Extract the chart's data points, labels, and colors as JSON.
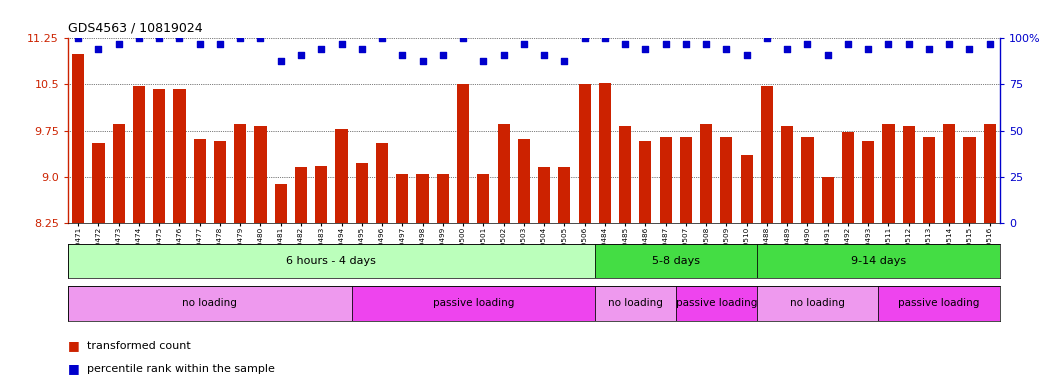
{
  "title": "GDS4563 / 10819024",
  "samples": [
    "GSM930471",
    "GSM930472",
    "GSM930473",
    "GSM930474",
    "GSM930475",
    "GSM930476",
    "GSM930477",
    "GSM930478",
    "GSM930479",
    "GSM930480",
    "GSM930481",
    "GSM930482",
    "GSM930483",
    "GSM930494",
    "GSM930495",
    "GSM930496",
    "GSM930497",
    "GSM930498",
    "GSM930499",
    "GSM930500",
    "GSM930501",
    "GSM930502",
    "GSM930503",
    "GSM930504",
    "GSM930505",
    "GSM930506",
    "GSM930484",
    "GSM930485",
    "GSM930486",
    "GSM930487",
    "GSM930507",
    "GSM930508",
    "GSM930509",
    "GSM930510",
    "GSM930488",
    "GSM930489",
    "GSM930490",
    "GSM930491",
    "GSM930492",
    "GSM930493",
    "GSM930511",
    "GSM930512",
    "GSM930513",
    "GSM930514",
    "GSM930515",
    "GSM930516"
  ],
  "bar_values": [
    11.0,
    9.55,
    9.85,
    10.47,
    10.42,
    10.42,
    9.62,
    9.58,
    9.85,
    9.82,
    8.88,
    9.15,
    9.18,
    9.78,
    9.22,
    9.55,
    9.05,
    9.05,
    9.05,
    10.5,
    9.05,
    9.85,
    9.62,
    9.15,
    9.15,
    10.5,
    10.52,
    9.82,
    9.58,
    9.65,
    9.65,
    9.85,
    9.65,
    9.35,
    10.47,
    9.82,
    9.65,
    9.0,
    9.72,
    9.58,
    9.85,
    9.82,
    9.65,
    9.85,
    9.65,
    9.85
  ],
  "percentile_values": [
    100,
    94,
    97,
    100,
    100,
    100,
    97,
    97,
    100,
    100,
    88,
    91,
    94,
    97,
    94,
    100,
    91,
    88,
    91,
    100,
    88,
    91,
    97,
    91,
    88,
    100,
    100,
    97,
    94,
    97,
    97,
    97,
    94,
    91,
    100,
    94,
    97,
    91,
    97,
    94,
    97,
    97,
    94,
    97,
    94,
    97
  ],
  "ylim": [
    8.25,
    11.25
  ],
  "yticks": [
    8.25,
    9.0,
    9.75,
    10.5,
    11.25
  ],
  "bar_color": "#cc2200",
  "dot_color": "#0000cc",
  "plot_bg": "#ffffff",
  "grid_color": "#000000",
  "time_groups": [
    {
      "label": "6 hours - 4 days",
      "start": 0,
      "end": 26,
      "color": "#bbffbb"
    },
    {
      "label": "5-8 days",
      "start": 26,
      "end": 34,
      "color": "#44dd44"
    },
    {
      "label": "9-14 days",
      "start": 34,
      "end": 46,
      "color": "#44dd44"
    }
  ],
  "protocol_groups": [
    {
      "label": "no loading",
      "start": 0,
      "end": 14,
      "color": "#ee99ee"
    },
    {
      "label": "passive loading",
      "start": 14,
      "end": 26,
      "color": "#ee44ee"
    },
    {
      "label": "no loading",
      "start": 26,
      "end": 30,
      "color": "#ee99ee"
    },
    {
      "label": "passive loading",
      "start": 30,
      "end": 34,
      "color": "#ee44ee"
    },
    {
      "label": "no loading",
      "start": 34,
      "end": 40,
      "color": "#ee99ee"
    },
    {
      "label": "passive loading",
      "start": 40,
      "end": 46,
      "color": "#ee44ee"
    }
  ],
  "right_yticks_pct": [
    0,
    25,
    50,
    75,
    100
  ],
  "right_ytick_labels": [
    "0",
    "25",
    "50",
    "75",
    "100%"
  ]
}
